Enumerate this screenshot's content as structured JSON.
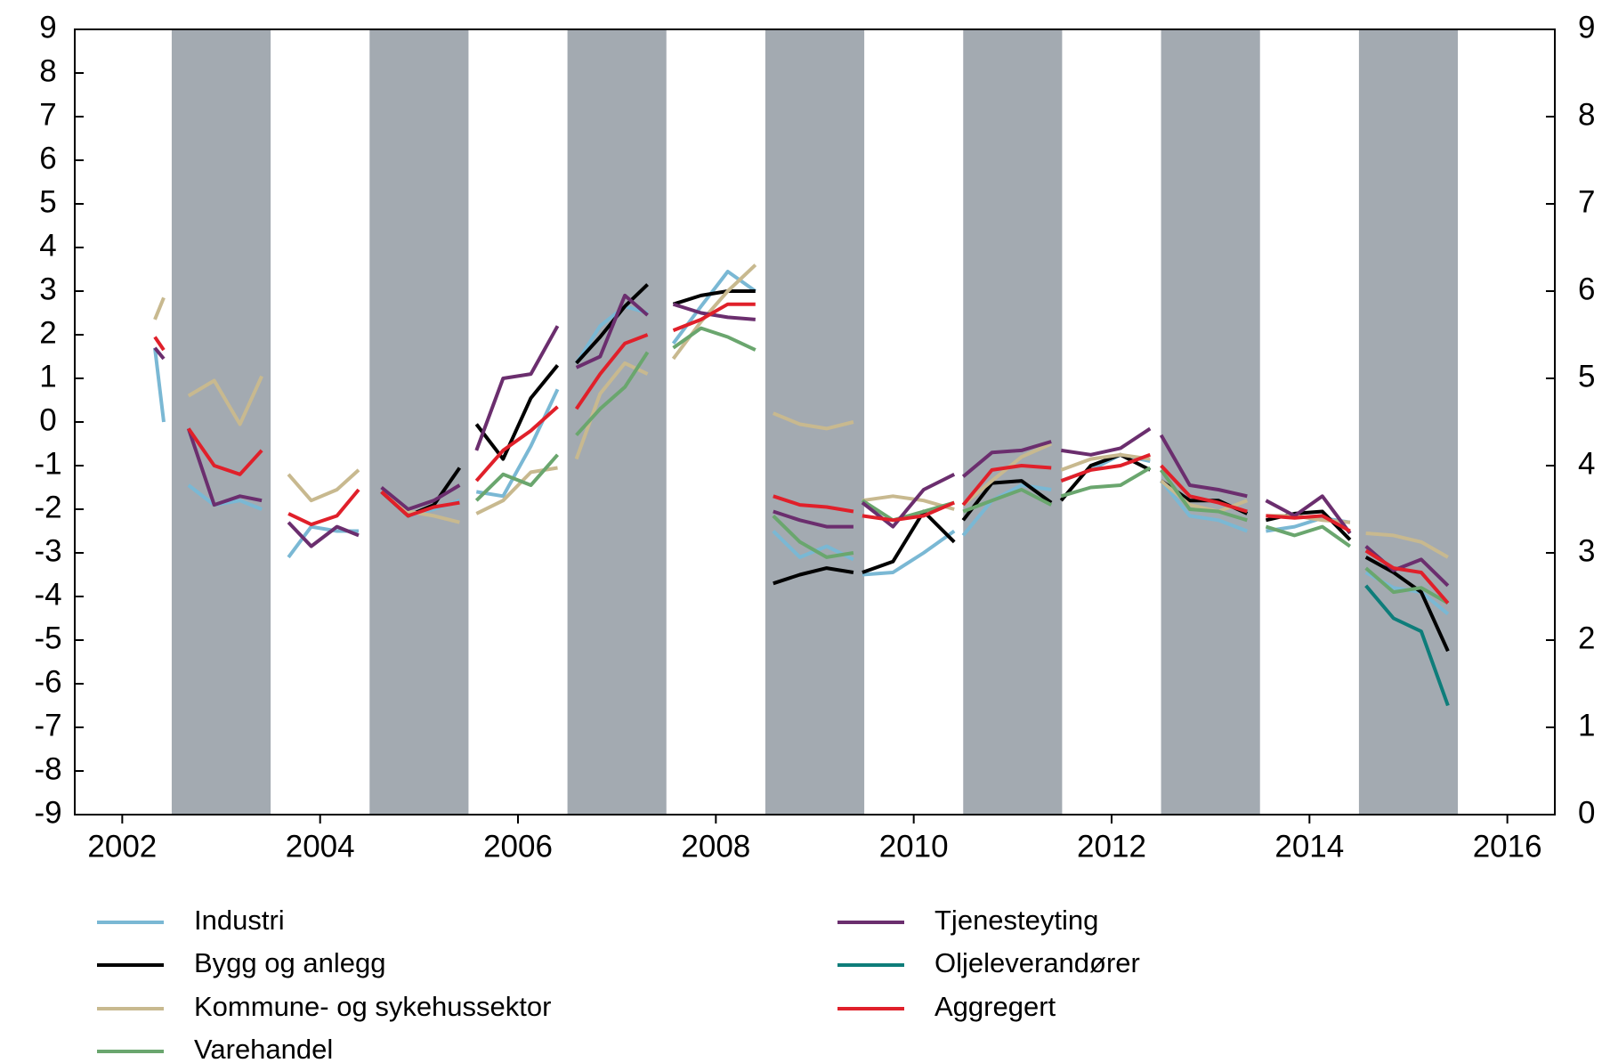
{
  "chart_data": {
    "type": "line",
    "xlim": [
      2001.52,
      2016.48
    ],
    "xticks": [
      2002,
      2004,
      2006,
      2008,
      2010,
      2012,
      2014,
      2016
    ],
    "ylim": [
      -9,
      9
    ],
    "yticks": [
      -9,
      -8,
      -7,
      -6,
      -5,
      -4,
      -3,
      -2,
      -1,
      0,
      1,
      2,
      3,
      4,
      5,
      6,
      7,
      8,
      9
    ],
    "y2lim": [
      0,
      9
    ],
    "y2ticks": [
      0,
      1,
      2,
      3,
      4,
      5,
      6,
      7,
      8,
      9
    ],
    "shaded_spans": [
      [
        2002.5,
        2003.5
      ],
      [
        2004.5,
        2005.5
      ],
      [
        2006.5,
        2007.5
      ],
      [
        2008.5,
        2009.5
      ],
      [
        2010.5,
        2011.5
      ],
      [
        2012.5,
        2013.5
      ],
      [
        2014.5,
        2015.5
      ]
    ],
    "shade_color": "#a3aab1",
    "legend": "bottom",
    "x": [
      2002.33,
      2002.42,
      null,
      2002.67,
      2002.93,
      2003.19,
      2003.41,
      null,
      2003.68,
      2003.91,
      2004.17,
      2004.39,
      null,
      2004.62,
      2004.89,
      2005.15,
      2005.41,
      null,
      2005.58,
      2005.85,
      2006.13,
      2006.4,
      null,
      2006.59,
      2006.83,
      2007.08,
      2007.31,
      null,
      2007.57,
      2007.85,
      2008.12,
      2008.4,
      null,
      2008.58,
      2008.85,
      2009.12,
      2009.39,
      null,
      2009.48,
      2009.79,
      2010.1,
      2010.41,
      null,
      2010.5,
      2010.79,
      2011.09,
      2011.39,
      null,
      2011.49,
      2011.79,
      2012.09,
      2012.39,
      null,
      2012.5,
      2012.79,
      2013.08,
      2013.37,
      null,
      2013.56,
      2013.85,
      2014.13,
      2014.41,
      null,
      2014.57,
      2014.85,
      2015.13,
      2015.4
    ],
    "series": [
      {
        "name": "Industri",
        "color": "#7ab8d4",
        "values": [
          1.7,
          0.0,
          null,
          -1.45,
          -1.9,
          -1.8,
          -2.0,
          null,
          -3.1,
          -2.4,
          -2.5,
          -2.5,
          null,
          -1.6,
          -2.15,
          -2.0,
          -1.8,
          null,
          -1.6,
          -1.7,
          -0.55,
          0.75,
          null,
          1.35,
          2.2,
          2.65,
          2.5,
          null,
          1.8,
          2.65,
          3.45,
          3.0,
          null,
          -2.5,
          -3.1,
          -2.85,
          -3.15,
          null,
          -3.5,
          -3.45,
          -3.0,
          -2.5,
          null,
          -2.6,
          -1.8,
          -1.45,
          -1.55,
          null,
          -1.35,
          -1.1,
          -0.75,
          -0.9,
          null,
          -1.35,
          -2.15,
          -2.25,
          -2.5,
          null,
          -2.5,
          -2.4,
          -2.2,
          -2.3,
          null,
          -3.45,
          -3.8,
          -3.9,
          -4.4
        ]
      },
      {
        "name": "Bygg og anlegg",
        "color": "#000000",
        "values": [
          null,
          null,
          null,
          null,
          null,
          null,
          null,
          null,
          null,
          null,
          null,
          null,
          null,
          -1.6,
          -2.15,
          -1.9,
          -1.05,
          null,
          -0.05,
          -0.85,
          0.55,
          1.3,
          null,
          1.35,
          1.95,
          2.65,
          3.15,
          null,
          2.7,
          2.9,
          3.0,
          3.0,
          null,
          -3.7,
          -3.5,
          -3.35,
          -3.45,
          null,
          -3.45,
          -3.2,
          -2.05,
          -2.75,
          null,
          -2.25,
          -1.4,
          -1.35,
          -1.85,
          null,
          -1.8,
          -1.0,
          -0.75,
          -1.1,
          null,
          -1.35,
          -1.8,
          -1.8,
          -2.1,
          null,
          -2.25,
          -2.1,
          -2.05,
          -2.7,
          null,
          -3.1,
          -3.45,
          -3.9,
          -5.25
        ]
      },
      {
        "name": "Kommune- og sykehussektor",
        "color": "#c8b98f",
        "values": [
          2.35,
          2.85,
          null,
          0.6,
          0.95,
          -0.05,
          1.05,
          null,
          -1.2,
          -1.8,
          -1.55,
          -1.1,
          null,
          -1.6,
          -2.05,
          -2.15,
          -2.3,
          null,
          -2.1,
          -1.8,
          -1.15,
          -1.05,
          null,
          -0.85,
          0.65,
          1.35,
          1.1,
          null,
          1.45,
          2.3,
          3.0,
          3.6,
          null,
          0.2,
          -0.05,
          -0.15,
          0.0,
          null,
          -1.8,
          -1.7,
          -1.8,
          -2.0,
          null,
          -1.9,
          -1.35,
          -0.8,
          -0.5,
          null,
          -1.1,
          -0.85,
          -0.75,
          -0.85,
          null,
          -1.35,
          -1.9,
          -2.05,
          -1.8,
          null,
          -2.15,
          -2.15,
          -2.25,
          -2.3,
          null,
          -2.55,
          -2.6,
          -2.75,
          -3.1
        ]
      },
      {
        "name": "Varehandel",
        "color": "#6aa66e",
        "values": [
          null,
          null,
          null,
          null,
          null,
          null,
          null,
          null,
          null,
          null,
          null,
          null,
          null,
          null,
          null,
          null,
          null,
          null,
          -1.8,
          -1.2,
          -1.45,
          -0.75,
          null,
          -0.3,
          0.3,
          0.8,
          1.6,
          null,
          1.7,
          2.15,
          1.95,
          1.65,
          null,
          -2.15,
          -2.75,
          -3.1,
          -3.0,
          null,
          -1.8,
          -2.25,
          -2.05,
          -1.85,
          null,
          -2.05,
          -1.8,
          -1.55,
          -1.9,
          null,
          -1.7,
          -1.5,
          -1.45,
          -1.05,
          null,
          -1.1,
          -2.0,
          -2.05,
          -2.25,
          null,
          -2.4,
          -2.6,
          -2.4,
          -2.85,
          null,
          -3.35,
          -3.9,
          -3.8,
          -4.15
        ]
      },
      {
        "name": "Tjenesteyting",
        "color": "#6b2e6e",
        "values": [
          1.7,
          1.45,
          null,
          -0.15,
          -1.9,
          -1.7,
          -1.8,
          null,
          -2.3,
          -2.85,
          -2.4,
          -2.6,
          null,
          -1.5,
          -2.0,
          -1.8,
          -1.45,
          null,
          -0.65,
          1.0,
          1.1,
          2.2,
          null,
          1.25,
          1.5,
          2.9,
          2.45,
          null,
          2.7,
          2.5,
          2.4,
          2.35,
          null,
          -2.05,
          -2.25,
          -2.4,
          -2.4,
          null,
          -1.85,
          -2.4,
          -1.55,
          -1.2,
          null,
          -1.25,
          -0.7,
          -0.65,
          -0.45,
          null,
          -0.65,
          -0.75,
          -0.6,
          -0.15,
          null,
          -0.3,
          -1.45,
          -1.55,
          -1.7,
          null,
          -1.8,
          -2.15,
          -1.7,
          -2.55,
          null,
          -2.85,
          -3.4,
          -3.15,
          -3.75
        ]
      },
      {
        "name": "Oljeleverandører",
        "color": "#0e7d7a",
        "values": [
          null,
          null,
          null,
          null,
          null,
          null,
          null,
          null,
          null,
          null,
          null,
          null,
          null,
          null,
          null,
          null,
          null,
          null,
          null,
          null,
          null,
          null,
          null,
          null,
          null,
          null,
          null,
          null,
          null,
          null,
          null,
          null,
          null,
          null,
          null,
          null,
          null,
          null,
          null,
          null,
          null,
          null,
          null,
          null,
          null,
          null,
          null,
          null,
          null,
          null,
          null,
          null,
          null,
          null,
          null,
          null,
          null,
          null,
          null,
          null,
          null,
          null,
          null,
          -3.75,
          -4.5,
          -4.8,
          -6.5
        ]
      },
      {
        "name": "Aggregert",
        "color": "#e0202a",
        "values": [
          1.95,
          1.65,
          null,
          -0.15,
          -1.0,
          -1.2,
          -0.65,
          null,
          -2.1,
          -2.35,
          -2.15,
          -1.55,
          null,
          -1.6,
          -2.15,
          -1.95,
          -1.85,
          null,
          -1.35,
          -0.65,
          -0.2,
          0.35,
          null,
          0.3,
          1.1,
          1.8,
          2.0,
          null,
          2.1,
          2.35,
          2.7,
          2.7,
          null,
          -1.7,
          -1.9,
          -1.95,
          -2.05,
          null,
          -2.15,
          -2.25,
          -2.15,
          -1.85,
          null,
          -1.9,
          -1.1,
          -1.0,
          -1.05,
          null,
          -1.35,
          -1.1,
          -1.0,
          -0.75,
          null,
          -1.0,
          -1.7,
          -1.85,
          -2.05,
          null,
          -2.15,
          -2.2,
          -2.15,
          -2.5,
          null,
          -2.95,
          -3.35,
          -3.45,
          -4.15
        ]
      }
    ]
  }
}
